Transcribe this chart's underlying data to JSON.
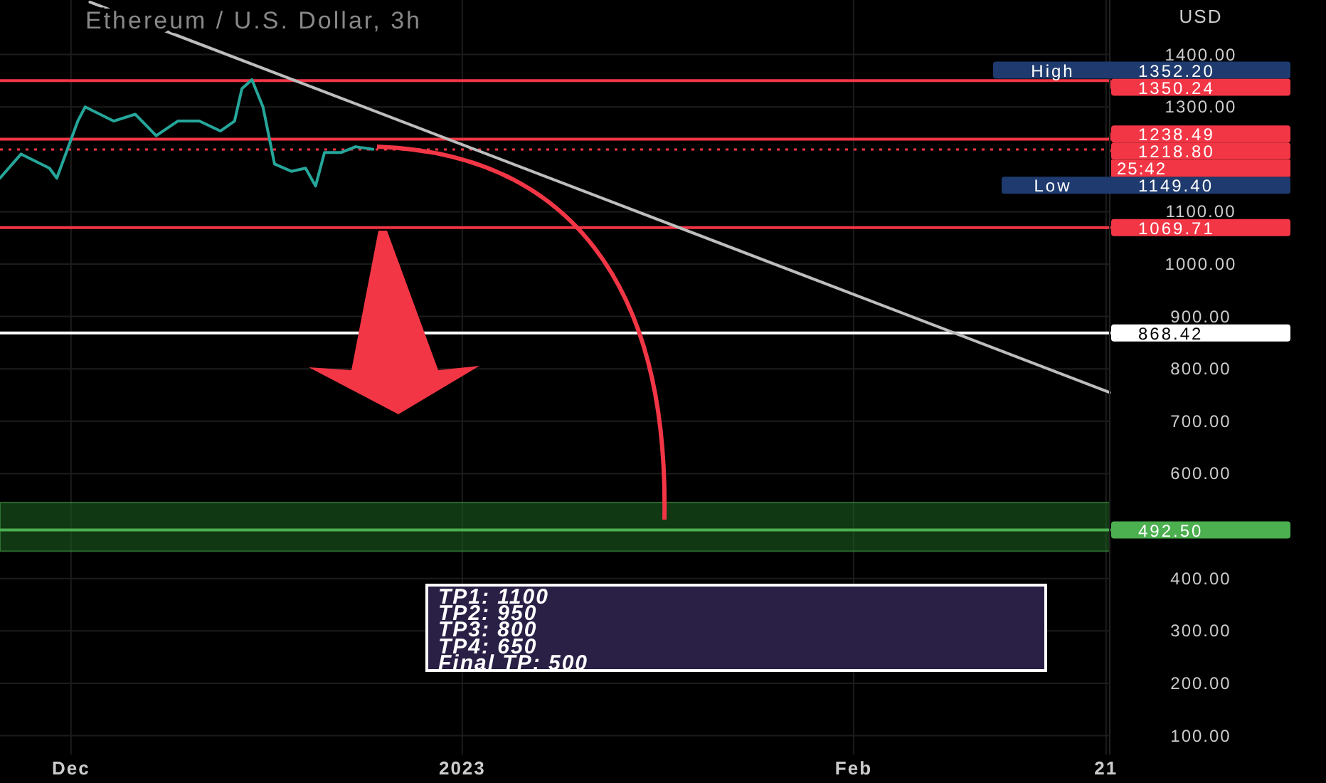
{
  "chart_data": {
    "type": "line",
    "title": "Ethereum / U.S. Dollar, 3h",
    "ylabel": "USD",
    "xlim": [
      "2022-11-25T09:00",
      "2023-02-21T07:00"
    ],
    "xticks": [
      {
        "value": "2022-12-01",
        "label": "Dec"
      },
      {
        "value": "2023-01-01",
        "label": "2023"
      },
      {
        "value": "2023-02-01",
        "label": "Feb"
      },
      {
        "value": "2023-02-21",
        "label": "21"
      }
    ],
    "ylim": [
      64,
      1504
    ],
    "yticks": [
      {
        "value": 100,
        "label": "100.00"
      },
      {
        "value": 200,
        "label": "200.00"
      },
      {
        "value": 300,
        "label": "300.00"
      },
      {
        "value": 400,
        "label": "400.00"
      },
      {
        "value": 600,
        "label": "600.00"
      },
      {
        "value": 700,
        "label": "700.00"
      },
      {
        "value": 800,
        "label": "800.00"
      },
      {
        "value": 900,
        "label": "900.00"
      },
      {
        "value": 1000,
        "label": "1000.00"
      },
      {
        "value": 1100,
        "label": "1100.00"
      },
      {
        "value": 1300,
        "label": "1300.00"
      },
      {
        "value": 1400,
        "label": "1400.00"
      }
    ],
    "grid": true,
    "series": [
      {
        "color": "#26a69a",
        "x": [
          "2022-11-25T09:00",
          "2022-11-27T01:00",
          "2022-11-29T07:00",
          "2022-11-29T21:00",
          "2022-12-01T13:00",
          "2022-12-02T03:00",
          "2022-12-04T09:00",
          "2022-12-06T02:00",
          "2022-12-07T18:00",
          "2022-12-09T11:00",
          "2022-12-11T04:00",
          "2022-12-12T20:00",
          "2022-12-13T23:00",
          "2022-12-14T13:00",
          "2022-12-15T08:00",
          "2022-12-16T05:00",
          "2022-12-17T03:00",
          "2022-12-18T11:00",
          "2022-12-19T14:00",
          "2022-12-20T09:00",
          "2022-12-21T02:00",
          "2022-12-22T10:00",
          "2022-12-23T13:00",
          "2022-12-24T22:00"
        ],
        "values": [
          1164,
          1210,
          1183,
          1164,
          1273,
          1300,
          1273,
          1286,
          1245,
          1273,
          1273,
          1254,
          1273,
          1335,
          1352,
          1300,
          1191,
          1177,
          1183,
          1149,
          1213,
          1213,
          1224,
          1219
        ]
      },
      {
        "color": "#bdbdbd",
        "x": [
          "2022-12-02T12:00",
          "2023-02-21T07:00"
        ],
        "values": [
          1500,
          755
        ]
      }
    ],
    "ref_lines": [
      {
        "axis": "y",
        "value": 1350.24,
        "label": "1350.24",
        "color": "#f23645"
      },
      {
        "axis": "y",
        "value": 1238.49,
        "label": "1238.49",
        "color": "#f23645"
      },
      {
        "axis": "y",
        "value": 1218.8,
        "label": "1218.80",
        "color": "#f23645",
        "line_style": "dotted"
      },
      {
        "axis": "y",
        "value": 1069.71,
        "label": "1069.71",
        "color": "#f23645"
      },
      {
        "axis": "y",
        "value": 868.42,
        "label": "868.42",
        "color": "#ffffff"
      },
      {
        "axis": "y",
        "value": 492.5,
        "label": "492.50",
        "color": "#4caf50"
      }
    ],
    "bands": [
      {
        "axis": "y",
        "from": 452,
        "to": 545,
        "color": "#1b5e20"
      }
    ],
    "annotations": [
      "High",
      "1352.20",
      "Low",
      "1149.40",
      "25:42",
      "TP1: 1100",
      "TP2: 950",
      "TP3: 800",
      "TP4: 650",
      "Final TP: 500"
    ]
  }
}
